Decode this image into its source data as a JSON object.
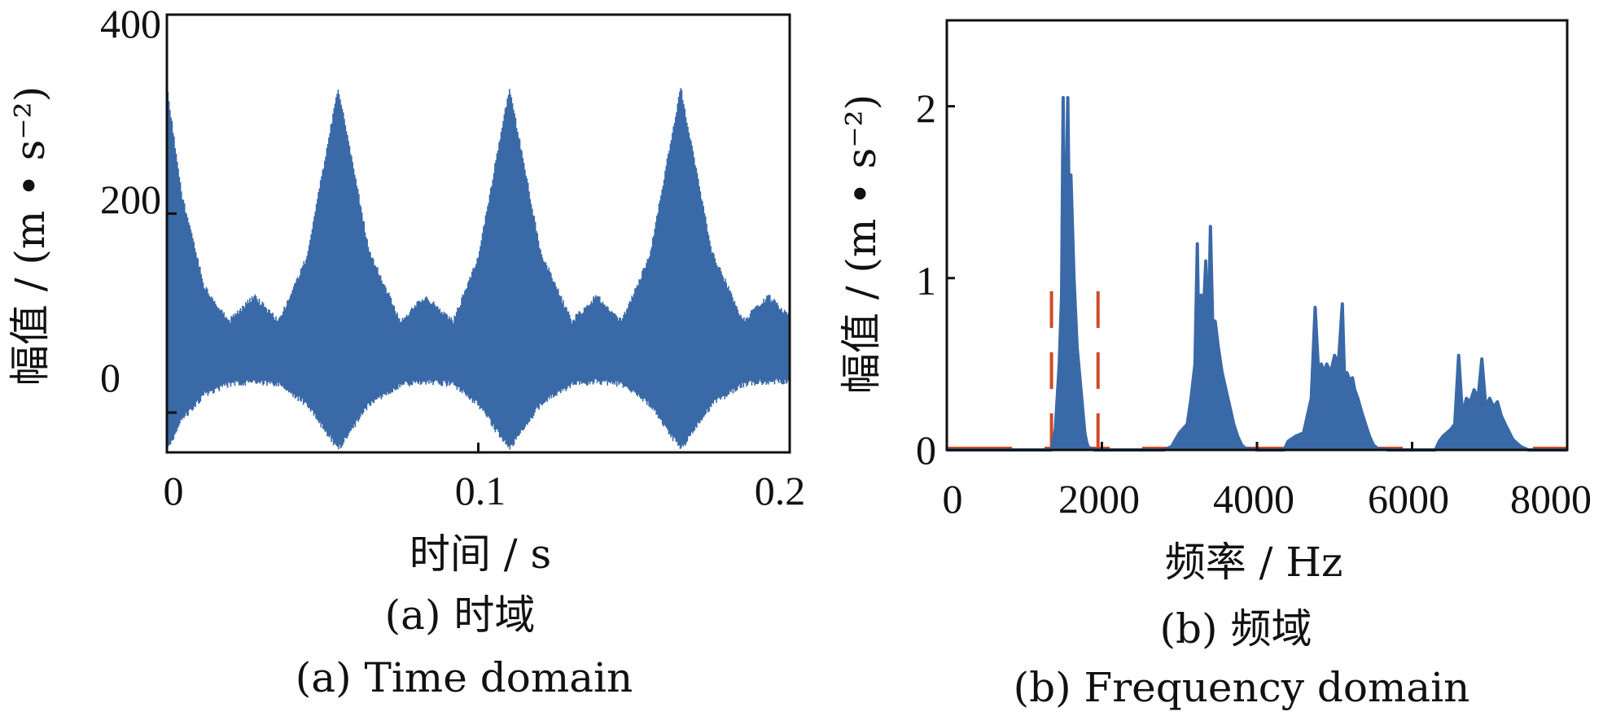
{
  "colors": {
    "series": "#3a69a8",
    "highlight": "#d24a2a",
    "axis": "#111111"
  },
  "chart_data": [
    {
      "type": "line",
      "xlabel": "时间 / s",
      "ylabel": "幅值 / (m • s⁻²)",
      "xlim": [
        0,
        0.2
      ],
      "ylim": [
        -40,
        400
      ],
      "xticks": [
        "0",
        "0.1",
        "0.2"
      ],
      "yticks": [
        "0",
        "200",
        "400"
      ],
      "caption_cn": "(a)  时域",
      "caption_en": "(a)  Time domain",
      "series": [
        {
          "envelope_t": [
            0,
            0.005,
            0.012,
            0.02,
            0.028,
            0.036,
            0.045,
            0.055,
            0.065,
            0.075,
            0.083,
            0.092,
            0.1,
            0.11,
            0.12,
            0.13,
            0.138,
            0.146,
            0.155,
            0.165,
            0.175,
            0.185,
            0.193,
            0.2
          ],
          "envelope_upper": [
            330,
            220,
            130,
            95,
            120,
            95,
            160,
            330,
            165,
            95,
            120,
            95,
            160,
            330,
            165,
            95,
            120,
            95,
            160,
            330,
            165,
            95,
            120,
            100
          ],
          "envelope_lower": [
            -40,
            -10,
            15,
            25,
            28,
            25,
            5,
            -40,
            5,
            25,
            28,
            25,
            5,
            -40,
            5,
            25,
            28,
            25,
            5,
            -40,
            5,
            25,
            28,
            28
          ]
        }
      ]
    },
    {
      "type": "line",
      "xlabel": "频率 / Hz",
      "ylabel": "幅值 / (m • s⁻²)",
      "xlim": [
        0,
        8000
      ],
      "ylim": [
        0,
        2.5
      ],
      "xticks": [
        "0",
        "2000",
        "4000",
        "6000",
        "8000"
      ],
      "yticks": [
        "0",
        "1",
        "2"
      ],
      "caption_cn": "(b)  频域",
      "caption_en": "(b)  Frequency domain",
      "series": [
        {
          "x": [
            0,
            1350,
            1400,
            1450,
            1480,
            1500,
            1520,
            1540,
            1560,
            1580,
            1600,
            1620,
            1640,
            1660,
            1680,
            1700,
            1720,
            1740,
            1760,
            1780,
            1800,
            1820,
            1850,
            1900,
            2000,
            2800,
            2900,
            3000,
            3100,
            3150,
            3200,
            3230,
            3250,
            3280,
            3300,
            3340,
            3370,
            3400,
            3430,
            3460,
            3500,
            3550,
            3600,
            3650,
            3700,
            3750,
            3800,
            3850,
            4000,
            4350,
            4400,
            4500,
            4600,
            4650,
            4700,
            4750,
            4800,
            4830,
            4860,
            4900,
            4950,
            5000,
            5050,
            5100,
            5130,
            5160,
            5200,
            5230,
            5260,
            5300,
            5350,
            5400,
            5450,
            5500,
            5550,
            5600,
            5700,
            5800,
            6000,
            6300,
            6350,
            6400,
            6450,
            6500,
            6550,
            6600,
            6650,
            6700,
            6750,
            6800,
            6850,
            6900,
            6950,
            7000,
            7050,
            7100,
            7150,
            7200,
            7300,
            7400,
            7500,
            8000
          ],
          "y": [
            0,
            0,
            0.12,
            0.5,
            0.9,
            2.05,
            0.9,
            1.5,
            2.05,
            1.3,
            1.6,
            1.3,
            1.0,
            0.8,
            0.6,
            0.5,
            0.4,
            0.3,
            0.2,
            0.1,
            0.05,
            0.02,
            0.01,
            0,
            0,
            0,
            0.02,
            0.1,
            0.15,
            0.3,
            0.5,
            1.2,
            0.6,
            0.9,
            0.7,
            1.1,
            0.6,
            1.3,
            0.7,
            0.75,
            0.6,
            0.45,
            0.35,
            0.25,
            0.15,
            0.08,
            0.03,
            0.01,
            0,
            0,
            0.05,
            0.08,
            0.1,
            0.2,
            0.3,
            0.83,
            0.4,
            0.5,
            0.45,
            0.5,
            0.45,
            0.55,
            0.5,
            0.85,
            0.4,
            0.45,
            0.4,
            0.42,
            0.35,
            0.3,
            0.22,
            0.15,
            0.08,
            0.03,
            0.01,
            0.005,
            0,
            0,
            0,
            0,
            0.05,
            0.08,
            0.1,
            0.12,
            0.15,
            0.55,
            0.2,
            0.3,
            0.28,
            0.35,
            0.3,
            0.53,
            0.25,
            0.3,
            0.25,
            0.28,
            0.2,
            0.15,
            0.06,
            0.02,
            0,
            0
          ]
        }
      ],
      "highlight_box": {
        "x": [
          1350,
          1950
        ],
        "y": [
          0,
          1.0
        ]
      }
    }
  ]
}
